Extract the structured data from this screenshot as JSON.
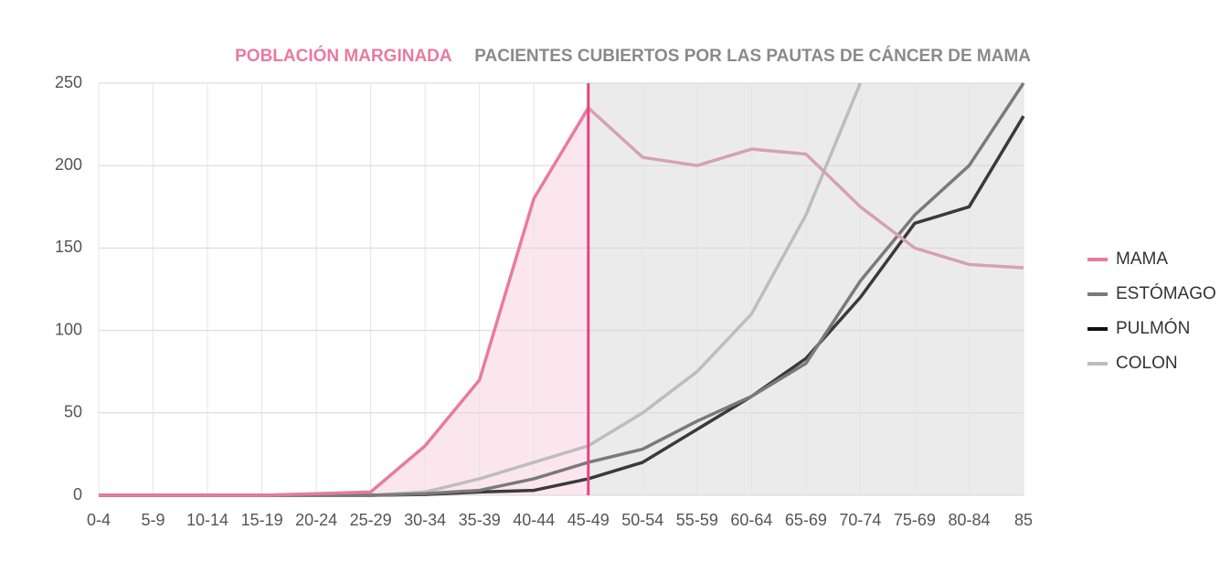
{
  "chart_data": {
    "type": "line",
    "categories": [
      "0-4",
      "5-9",
      "10-14",
      "15-19",
      "20-24",
      "25-29",
      "30-34",
      "35-39",
      "40-44",
      "45-49",
      "50-54",
      "55-59",
      "60-64",
      "65-69",
      "70-74",
      "75-69",
      "80-84",
      "85"
    ],
    "ylim": [
      0,
      250
    ],
    "yticks": [
      0,
      50,
      100,
      150,
      200,
      250
    ],
    "grid": true,
    "regions": [
      {
        "label": "POBLACIÓN MARGINADA",
        "from": "0-4",
        "to": "45-49",
        "label_color": "#e87aa0",
        "fill": "#fbe6ee",
        "line_color": "#e5457f"
      },
      {
        "label": "PACIENTES CUBIERTOS POR LAS PAUTAS DE CÁNCER DE MAMA",
        "from": "45-49",
        "to": "85",
        "label_color": "#8a8a8a",
        "fill": "#ebebeb"
      }
    ],
    "series": [
      {
        "name": "MAMA",
        "color": "#e87aa0",
        "color_after": "#d6a1b3",
        "values": [
          0,
          0,
          0,
          0,
          1,
          2,
          30,
          70,
          180,
          235,
          205,
          200,
          210,
          207,
          175,
          150,
          140,
          138
        ]
      },
      {
        "name": "ESTÓMAGO",
        "color": "#7a7a7a",
        "values": [
          0,
          0,
          0,
          0,
          0,
          0,
          1,
          3,
          10,
          20,
          28,
          45,
          60,
          80,
          130,
          170,
          200,
          250
        ]
      },
      {
        "name": "PULMÓN",
        "color": "#3a3a3a",
        "values": [
          0,
          0,
          0,
          0,
          0,
          0,
          0.5,
          2,
          3,
          10,
          20,
          40,
          60,
          83,
          120,
          165,
          175,
          230
        ]
      },
      {
        "name": "COLON",
        "color": "#bdbdbd",
        "values": [
          0,
          0,
          0,
          0,
          0,
          0,
          2,
          10,
          20,
          30,
          50,
          75,
          110,
          170,
          250,
          null,
          null,
          null
        ]
      }
    ],
    "legend": "right"
  }
}
